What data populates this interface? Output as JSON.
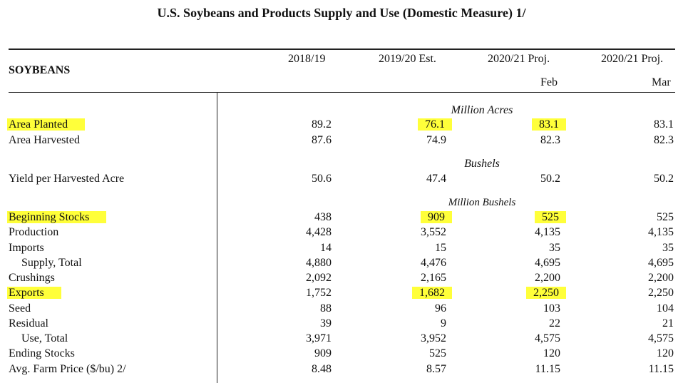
{
  "title": "U.S. Soybeans and Products Supply and Use (Domestic Measure)  1/",
  "section": "SOYBEANS",
  "columns": [
    {
      "line1": "2018/19",
      "line2": ""
    },
    {
      "line1": "2019/20 Est.",
      "line2": ""
    },
    {
      "line1": "2020/21 Proj.",
      "line2": "Feb"
    },
    {
      "line1": "2020/21 Proj.",
      "line2": "Mar"
    }
  ],
  "units": {
    "acres": "Million Acres",
    "bushels": "Bushels",
    "million_bushels": "Million Bushels"
  },
  "highlight_color": "#ffff3a",
  "rows": [
    {
      "label": "Area Planted",
      "values": [
        "89.2",
        "76.1",
        "83.1",
        "83.1"
      ],
      "highlight_label": true,
      "highlight_values": [
        false,
        true,
        true,
        false
      ]
    },
    {
      "label": "Area Harvested",
      "values": [
        "87.6",
        "74.9",
        "82.3",
        "82.3"
      ]
    },
    {
      "label": "Yield per Harvested Acre",
      "values": [
        "50.6",
        "47.4",
        "50.2",
        "50.2"
      ]
    },
    {
      "label": "Beginning Stocks",
      "values": [
        "438",
        "909",
        "525",
        "525"
      ],
      "highlight_label": true,
      "highlight_values": [
        false,
        true,
        true,
        false
      ]
    },
    {
      "label": "Production",
      "values": [
        "4,428",
        "3,552",
        "4,135",
        "4,135"
      ]
    },
    {
      "label": "Imports",
      "values": [
        "14",
        "15",
        "35",
        "35"
      ]
    },
    {
      "label": "  Supply, Total",
      "values": [
        "4,880",
        "4,476",
        "4,695",
        "4,695"
      ]
    },
    {
      "label": "Crushings",
      "values": [
        "2,092",
        "2,165",
        "2,200",
        "2,200"
      ]
    },
    {
      "label": "Exports",
      "values": [
        "1,752",
        "1,682",
        "2,250",
        "2,250"
      ],
      "highlight_label": true,
      "highlight_values": [
        false,
        true,
        true,
        false
      ]
    },
    {
      "label": "Seed",
      "values": [
        "88",
        "96",
        "103",
        "104"
      ]
    },
    {
      "label": "Residual",
      "values": [
        "39",
        "9",
        "22",
        "21"
      ]
    },
    {
      "label": "  Use, Total",
      "values": [
        "3,971",
        "3,952",
        "4,575",
        "4,575"
      ]
    },
    {
      "label": "Ending Stocks",
      "values": [
        "909",
        "525",
        "120",
        "120"
      ]
    },
    {
      "label": "Avg. Farm Price ($/bu)  2/",
      "values": [
        "8.48",
        "8.57",
        "11.15",
        "11.15"
      ]
    }
  ]
}
